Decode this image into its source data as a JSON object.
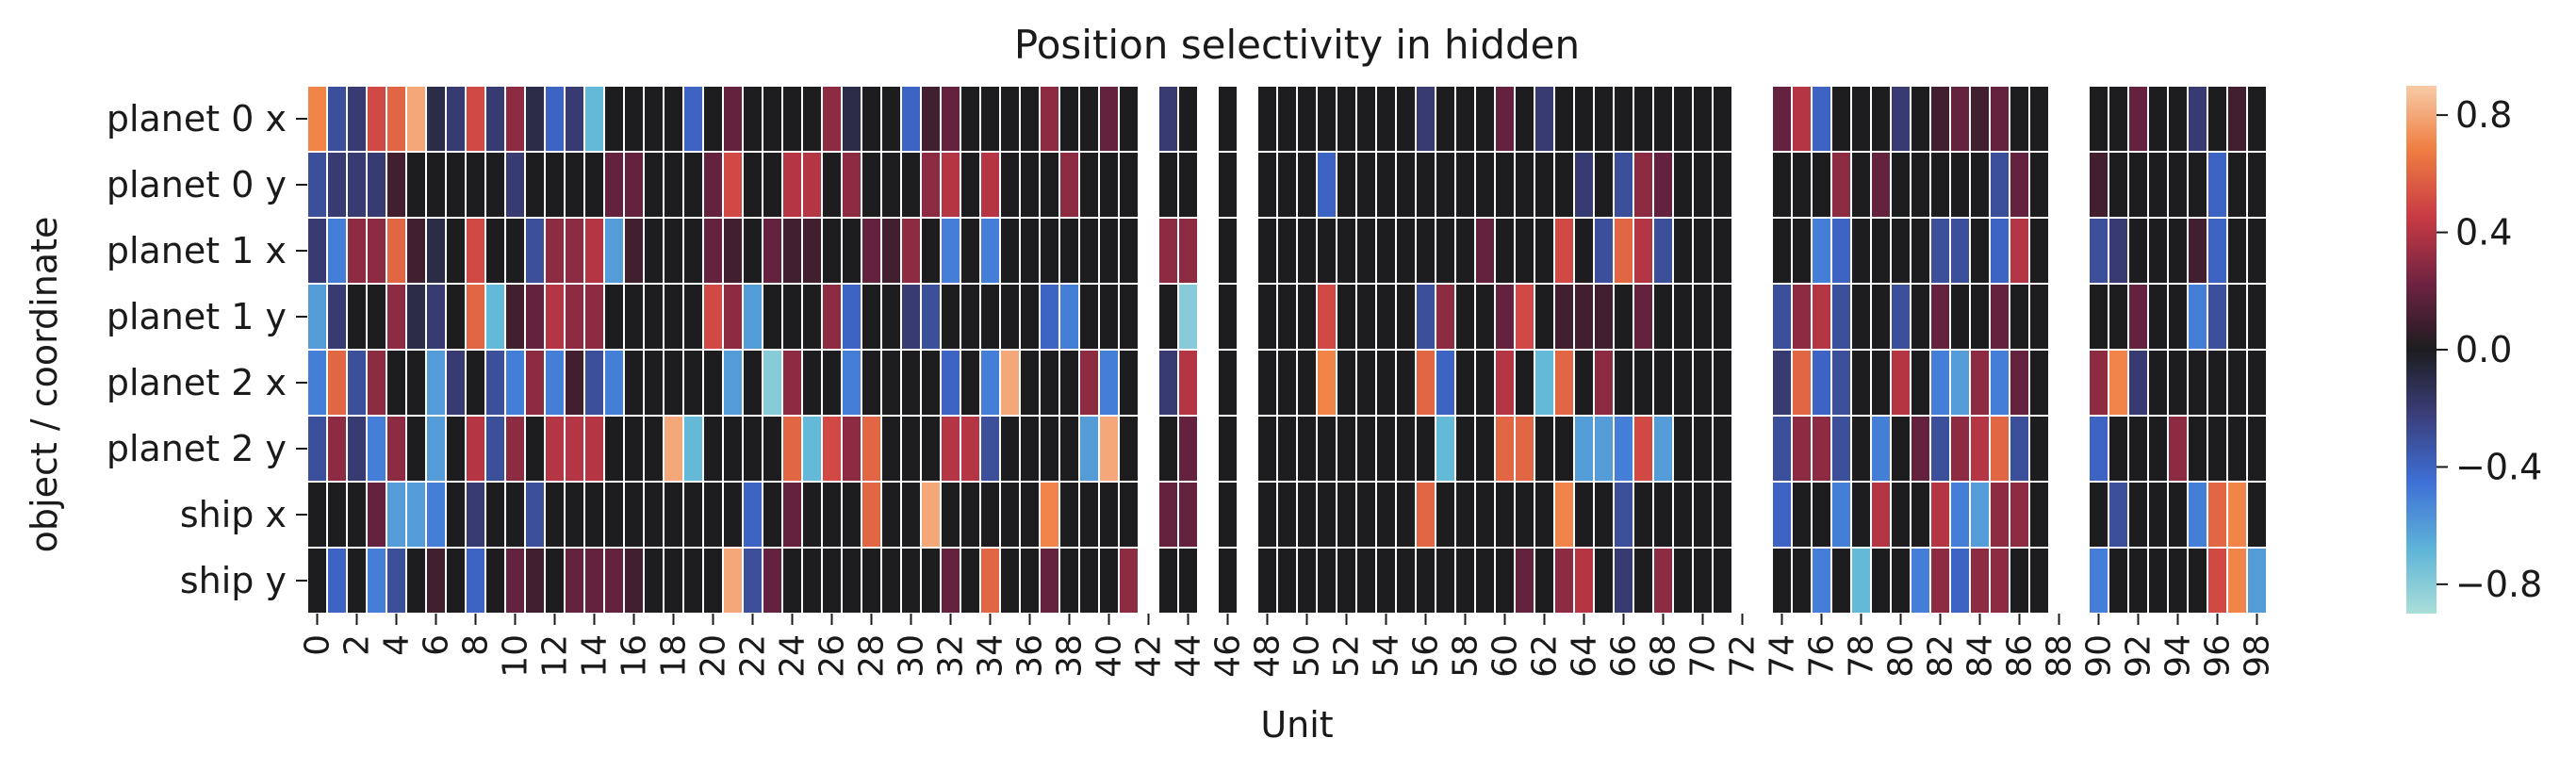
{
  "chart_data": {
    "type": "heatmap",
    "title": "Position selectivity in hidden",
    "xlabel": "Unit",
    "ylabel": "object / coordinate",
    "rows": [
      "planet 0 x",
      "planet 0 y",
      "planet 1 x",
      "planet 1 y",
      "planet 2 x",
      "planet 2 y",
      "ship x",
      "ship y"
    ],
    "n_units": 100,
    "x_tick_labels": [
      "0",
      "2",
      "4",
      "6",
      "8",
      "10",
      "12",
      "14",
      "16",
      "18",
      "20",
      "22",
      "24",
      "26",
      "28",
      "30",
      "32",
      "34",
      "36",
      "38",
      "40",
      "42",
      "44",
      "46",
      "48",
      "50",
      "52",
      "54",
      "56",
      "58",
      "60",
      "62",
      "64",
      "66",
      "68",
      "70",
      "72",
      "74",
      "76",
      "78",
      "80",
      "82",
      "84",
      "86",
      "88",
      "90",
      "92",
      "94",
      "96",
      "98"
    ],
    "blank_columns": [
      42,
      45,
      47,
      72,
      73,
      88,
      89,
      99
    ],
    "colorbar": {
      "colormap": "icefire",
      "range": [
        -0.9,
        0.9
      ],
      "ticks": [
        0.8,
        0.4,
        0.0,
        -0.4,
        -0.8
      ],
      "tick_labels": [
        "0.8",
        "0.4",
        "0.0",
        "−0.4",
        "−0.8"
      ]
    },
    "values": [
      [
        0.7,
        -0.3,
        -0.2,
        0.5,
        0.6,
        0.8,
        -0.1,
        -0.2,
        0.5,
        -0.2,
        0.3,
        -0.1,
        -0.4,
        -0.2,
        -0.7,
        0.0,
        0.0,
        0.0,
        0.0,
        -0.4,
        0.0,
        0.2,
        0.0,
        0.0,
        0.0,
        0.0,
        0.3,
        -0.1,
        0.0,
        0.0,
        -0.4,
        0.1,
        0.2,
        0.0,
        0.0,
        0.0,
        0.0,
        0.3,
        0.0,
        0.0,
        0.2,
        0.0,
        null,
        -0.2,
        0.0,
        null,
        0.0,
        null,
        0.0,
        0.0,
        0.0,
        0.0,
        0.0,
        0.0,
        0.0,
        0.0,
        -0.2,
        0.0,
        0.0,
        0.0,
        0.2,
        0.0,
        -0.2,
        0.0,
        0.0,
        0.0,
        0.0,
        0.0,
        0.0,
        0.0,
        0.0,
        0.0,
        null,
        null,
        0.2,
        0.4,
        -0.4,
        0.0,
        0.0,
        0.0,
        -0.2,
        0.0,
        0.1,
        0.2,
        0.1,
        0.2,
        0.0,
        0.0,
        null,
        null,
        0.0,
        0.0,
        0.2,
        0.0,
        0.0,
        -0.2,
        0.0,
        0.1,
        0.0,
        null
      ],
      [
        -0.3,
        -0.2,
        -0.2,
        -0.2,
        0.1,
        0.0,
        0.0,
        0.0,
        0.0,
        0.0,
        -0.2,
        0.0,
        0.0,
        0.0,
        0.0,
        0.2,
        0.2,
        0.0,
        0.0,
        0.0,
        0.2,
        0.5,
        0.0,
        0.0,
        0.4,
        0.4,
        0.0,
        0.3,
        0.0,
        0.0,
        0.0,
        0.3,
        0.4,
        0.0,
        0.4,
        0.0,
        0.0,
        0.0,
        0.3,
        0.0,
        0.0,
        0.0,
        null,
        0.0,
        0.0,
        null,
        0.0,
        null,
        0.0,
        0.0,
        0.0,
        -0.4,
        0.0,
        0.0,
        0.0,
        0.0,
        0.0,
        0.0,
        0.0,
        0.0,
        0.0,
        0.0,
        0.0,
        0.0,
        -0.2,
        0.0,
        -0.3,
        0.3,
        0.2,
        0.0,
        0.0,
        0.0,
        null,
        null,
        0.0,
        0.0,
        0.0,
        0.3,
        0.0,
        0.2,
        0.0,
        0.0,
        0.0,
        0.0,
        0.0,
        -0.3,
        0.2,
        0.0,
        null,
        null,
        0.1,
        0.0,
        0.0,
        0.0,
        0.0,
        0.0,
        -0.4,
        0.0,
        0.0,
        null
      ],
      [
        -0.2,
        -0.5,
        0.3,
        0.3,
        0.6,
        0.1,
        -0.1,
        0.0,
        0.5,
        0.0,
        0.0,
        -0.3,
        0.3,
        0.3,
        0.4,
        -0.6,
        0.1,
        0.0,
        0.0,
        0.0,
        0.2,
        0.1,
        0.0,
        0.2,
        0.1,
        0.1,
        0.0,
        0.0,
        0.2,
        0.1,
        0.3,
        0.0,
        -0.5,
        0.0,
        -0.5,
        0.0,
        0.0,
        0.0,
        0.0,
        0.0,
        0.0,
        0.0,
        null,
        0.3,
        0.3,
        null,
        0.0,
        null,
        0.0,
        0.0,
        0.0,
        0.0,
        0.0,
        0.0,
        0.0,
        0.0,
        0.0,
        0.0,
        0.0,
        0.2,
        0.0,
        0.0,
        0.0,
        0.5,
        0.0,
        -0.3,
        0.6,
        0.4,
        -0.3,
        0.0,
        0.0,
        0.0,
        null,
        null,
        0.0,
        0.0,
        -0.5,
        -0.4,
        0.0,
        0.0,
        0.0,
        0.0,
        -0.3,
        -0.3,
        0.0,
        -0.4,
        0.4,
        0.0,
        null,
        null,
        -0.3,
        -0.2,
        0.0,
        0.0,
        0.0,
        0.1,
        -0.4,
        0.0,
        0.0,
        null
      ],
      [
        -0.6,
        -0.2,
        0.0,
        0.0,
        0.3,
        -0.1,
        -0.2,
        0.0,
        0.6,
        -0.7,
        0.1,
        0.2,
        0.4,
        0.3,
        0.3,
        0.0,
        0.0,
        0.0,
        0.0,
        0.0,
        0.5,
        0.3,
        -0.6,
        0.0,
        0.0,
        0.0,
        0.3,
        -0.4,
        0.0,
        0.0,
        -0.2,
        -0.3,
        0.0,
        0.0,
        0.0,
        0.0,
        0.0,
        -0.4,
        -0.5,
        0.0,
        0.0,
        0.0,
        null,
        0.0,
        -0.8,
        null,
        0.0,
        null,
        0.0,
        0.0,
        0.0,
        0.5,
        0.0,
        0.0,
        0.0,
        0.0,
        -0.3,
        0.3,
        0.0,
        0.0,
        0.2,
        0.5,
        0.0,
        0.1,
        0.1,
        0.1,
        0.0,
        0.2,
        0.0,
        0.0,
        0.0,
        0.0,
        null,
        null,
        -0.3,
        0.3,
        0.4,
        -0.3,
        0.0,
        0.0,
        -0.3,
        0.0,
        0.2,
        0.0,
        0.0,
        0.2,
        0.0,
        0.0,
        null,
        null,
        0.0,
        0.0,
        0.2,
        0.0,
        0.0,
        -0.5,
        -0.3,
        0.0,
        0.0,
        null
      ],
      [
        -0.5,
        0.6,
        -0.3,
        0.3,
        0.0,
        0.0,
        -0.6,
        -0.2,
        0.0,
        -0.3,
        -0.5,
        0.3,
        -0.5,
        0.1,
        -0.3,
        -0.5,
        0.0,
        0.0,
        0.0,
        0.0,
        0.0,
        -0.6,
        0.0,
        -0.8,
        0.3,
        0.0,
        0.0,
        -0.5,
        0.0,
        0.0,
        0.0,
        0.0,
        -0.4,
        0.0,
        -0.5,
        0.8,
        0.0,
        0.0,
        0.0,
        0.3,
        -0.5,
        0.0,
        null,
        -0.2,
        0.4,
        null,
        0.0,
        null,
        0.0,
        0.0,
        0.0,
        0.7,
        0.0,
        0.0,
        0.0,
        0.0,
        0.6,
        -0.4,
        0.0,
        0.0,
        0.4,
        0.0,
        -0.7,
        0.6,
        0.0,
        0.3,
        0.0,
        0.0,
        0.0,
        0.0,
        0.0,
        0.0,
        null,
        null,
        -0.2,
        0.6,
        -0.4,
        -0.3,
        0.0,
        0.0,
        0.4,
        0.0,
        -0.5,
        -0.6,
        0.3,
        -0.5,
        0.2,
        0.0,
        null,
        null,
        0.3,
        0.7,
        -0.2,
        0.0,
        0.0,
        0.0,
        0.0,
        0.0,
        0.0,
        null
      ],
      [
        -0.3,
        0.3,
        -0.2,
        -0.5,
        0.3,
        0.0,
        -0.6,
        0.0,
        0.4,
        -0.3,
        0.3,
        0.0,
        0.4,
        0.4,
        0.4,
        0.0,
        0.0,
        0.0,
        0.8,
        -0.7,
        0.0,
        0.0,
        0.0,
        0.0,
        0.6,
        -0.7,
        0.5,
        0.3,
        0.6,
        0.0,
        0.0,
        0.0,
        0.4,
        0.4,
        -0.3,
        0.0,
        0.0,
        0.0,
        0.0,
        -0.6,
        0.8,
        0.0,
        null,
        0.0,
        0.2,
        null,
        0.0,
        null,
        0.0,
        0.0,
        0.0,
        0.0,
        0.0,
        0.0,
        0.0,
        0.0,
        0.0,
        -0.7,
        0.0,
        0.0,
        0.6,
        0.6,
        0.0,
        0.0,
        -0.6,
        -0.6,
        -0.5,
        0.5,
        -0.6,
        0.0,
        0.0,
        0.0,
        null,
        null,
        -0.3,
        0.3,
        0.3,
        -0.3,
        0.0,
        -0.5,
        0.0,
        0.2,
        -0.3,
        0.3,
        0.4,
        0.6,
        -0.3,
        0.0,
        null,
        null,
        -0.4,
        0.0,
        0.0,
        0.0,
        0.3,
        0.0,
        0.0,
        0.0,
        0.0,
        null
      ],
      [
        0.0,
        0.0,
        0.0,
        0.2,
        -0.6,
        -0.6,
        -0.5,
        0.0,
        -0.2,
        0.0,
        0.0,
        -0.3,
        0.0,
        0.0,
        0.0,
        0.0,
        0.0,
        0.0,
        0.0,
        0.0,
        0.0,
        0.0,
        -0.4,
        0.0,
        0.2,
        0.0,
        0.0,
        0.0,
        0.6,
        0.0,
        0.0,
        0.8,
        0.0,
        0.0,
        0.0,
        0.0,
        0.0,
        0.7,
        0.0,
        0.0,
        0.0,
        0.0,
        null,
        0.2,
        0.2,
        null,
        0.0,
        null,
        0.0,
        0.0,
        0.0,
        0.0,
        0.0,
        0.0,
        0.0,
        0.0,
        0.6,
        0.0,
        0.0,
        0.0,
        0.0,
        0.0,
        0.0,
        0.7,
        0.0,
        0.0,
        -0.3,
        0.0,
        0.0,
        0.0,
        0.0,
        0.0,
        null,
        null,
        -0.4,
        0.0,
        0.0,
        -0.5,
        0.0,
        0.4,
        0.0,
        0.0,
        0.4,
        -0.5,
        -0.6,
        0.3,
        0.3,
        0.0,
        null,
        null,
        0.0,
        -0.3,
        0.0,
        0.0,
        0.0,
        -0.5,
        0.6,
        0.7,
        0.0,
        null
      ],
      [
        0.0,
        -0.4,
        0.0,
        -0.5,
        -0.3,
        0.0,
        0.1,
        0.0,
        -0.4,
        0.0,
        0.2,
        0.1,
        0.0,
        0.2,
        0.2,
        0.2,
        0.1,
        0.0,
        0.0,
        0.0,
        0.0,
        0.8,
        -0.3,
        0.2,
        0.0,
        0.0,
        0.0,
        0.0,
        0.0,
        0.0,
        0.0,
        0.0,
        0.2,
        0.0,
        0.6,
        0.0,
        0.0,
        0.2,
        0.0,
        0.0,
        0.0,
        0.3,
        null,
        0.0,
        0.0,
        null,
        0.0,
        null,
        0.0,
        0.0,
        0.0,
        0.0,
        0.0,
        0.0,
        0.0,
        0.0,
        0.0,
        0.0,
        0.0,
        0.0,
        0.0,
        0.2,
        0.0,
        0.3,
        0.4,
        0.0,
        -0.2,
        0.0,
        0.3,
        0.0,
        0.0,
        0.0,
        null,
        null,
        0.0,
        0.0,
        -0.5,
        0.0,
        -0.7,
        0.0,
        0.0,
        -0.5,
        0.3,
        -0.4,
        0.3,
        0.3,
        0.0,
        0.0,
        null,
        null,
        -0.5,
        0.0,
        0.0,
        0.0,
        0.0,
        0.0,
        0.5,
        0.7,
        -0.6,
        null
      ]
    ]
  }
}
